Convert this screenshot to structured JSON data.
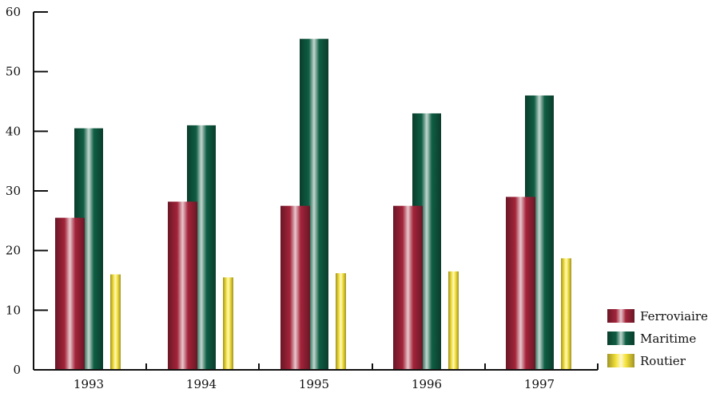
{
  "chart_data": {
    "type": "bar",
    "title": "",
    "xlabel": "",
    "ylabel": "",
    "categories": [
      "1993",
      "1994",
      "1995",
      "1996",
      "1997"
    ],
    "series": [
      {
        "name": "Ferroviaire",
        "values": [
          25.5,
          28.2,
          27.5,
          27.5,
          29.0
        ],
        "color": "#a3243a"
      },
      {
        "name": "Maritime",
        "values": [
          40.5,
          41.0,
          55.5,
          43.0,
          46.0
        ],
        "color": "#0f5e44"
      },
      {
        "name": "Routier",
        "values": [
          16.0,
          15.5,
          16.2,
          16.5,
          18.7
        ],
        "color": "#f5e23a"
      }
    ],
    "ylim": [
      0,
      60
    ],
    "yticks": [
      "0",
      "10",
      "20",
      "30",
      "40",
      "50",
      "60"
    ],
    "grid": false,
    "legend_position": "bottom-right"
  }
}
